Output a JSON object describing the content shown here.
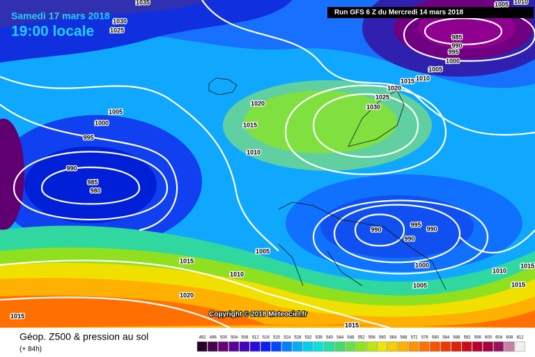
{
  "header": {
    "date": "Samedi 17 mars 2018",
    "time": "19:00 locale",
    "run": "Run GFS 6 Z du Mercredi 14 mars 2018"
  },
  "map": {
    "copyright": "Copyright © 2018 Meteociel.fr",
    "isobar_labels": [
      "1035",
      "1030",
      "1025",
      "1005",
      "1010",
      "985",
      "990",
      "995",
      "1000",
      "1005",
      "1010",
      "1015",
      "1020",
      "1025",
      "1030",
      "1020",
      "1015",
      "1010",
      "1005",
      "1000",
      "995",
      "990",
      "985",
      "980",
      "990",
      "995",
      "990",
      "990",
      "1000",
      "1005",
      "1005",
      "1010",
      "1015",
      "1020",
      "1015",
      "1015",
      "1010",
      "1015",
      "1015"
    ]
  },
  "footer": {
    "title": "Géop. Z500 & pression au sol",
    "lead": "(+ 84h)",
    "scale": [
      492,
      496,
      500,
      504,
      508,
      512,
      516,
      520,
      524,
      528,
      532,
      536,
      540,
      544,
      548,
      552,
      556,
      560,
      564,
      568,
      572,
      576,
      580,
      584,
      588,
      592,
      596,
      600,
      604,
      608,
      612
    ]
  }
}
